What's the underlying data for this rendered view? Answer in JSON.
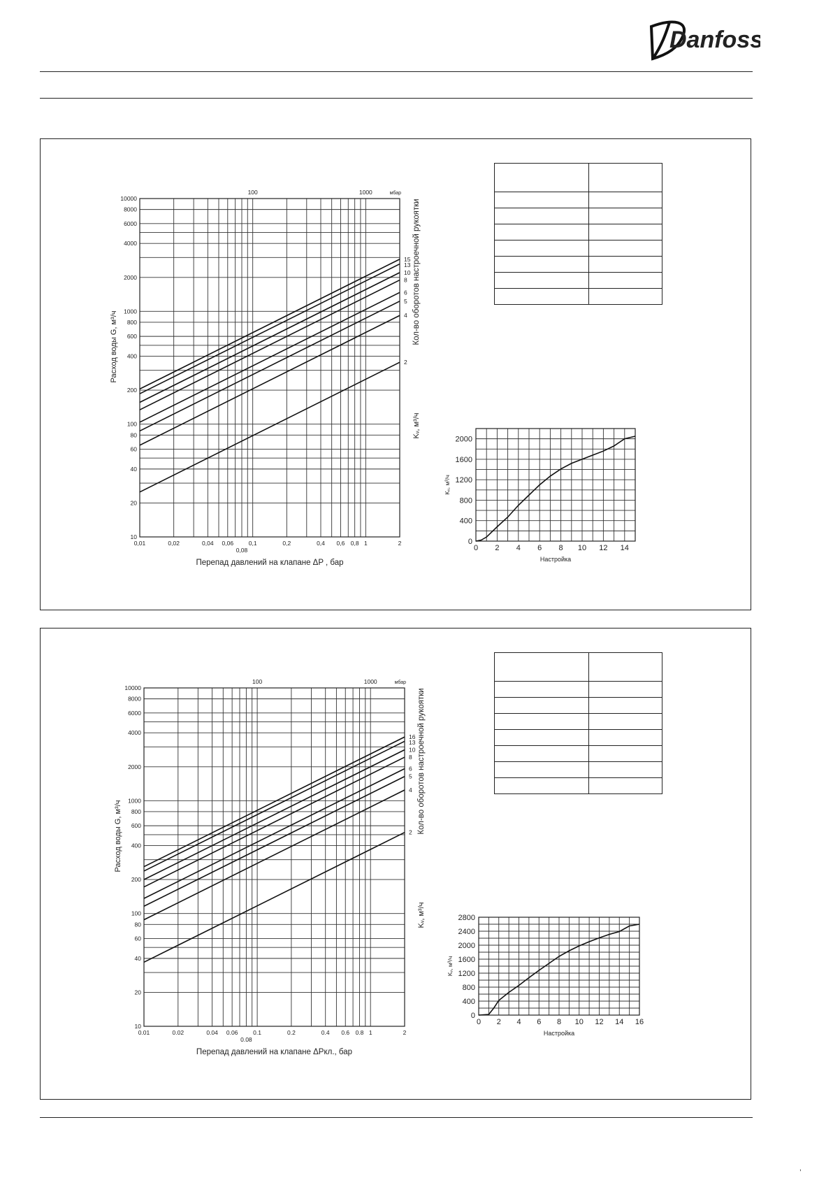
{
  "brand": {
    "logo_text": "Danfoss"
  },
  "page": {
    "page_mark": ","
  },
  "charts": [
    {
      "flow": {
        "type": "line",
        "title": "",
        "xlabel": "Перепад давлений на клапане  ΔP   , бар",
        "ylabel": "Расход воды G, м³/ч",
        "right_label": "Кол-во оборотов настроечной рукоятки",
        "kv_label": "Kᵥ, м³/ч",
        "top_unit": "мбар",
        "xscale": "log",
        "yscale": "log",
        "xlim": [
          0.01,
          2
        ],
        "ylim": [
          10,
          10000
        ],
        "x_ticks": [
          "0,01",
          "0,02",
          "0,04",
          "0,06",
          "0,08",
          "0,1",
          "0,2",
          "0,4",
          "0,6",
          "0,8",
          "1",
          "2"
        ],
        "y_ticks": [
          "10",
          "20",
          "40",
          "60",
          "80",
          "100",
          "200",
          "400",
          "600",
          "800",
          "1000",
          "2000",
          "4000",
          "6000",
          "8000",
          "10000"
        ],
        "top_ticks": [
          "100",
          "1000"
        ],
        "series": [
          {
            "name": "15",
            "kv": 2050
          },
          {
            "name": "13",
            "kv": 1860
          },
          {
            "name": "10",
            "kv": 1560
          },
          {
            "name": "8",
            "kv": 1340
          },
          {
            "name": "6",
            "kv": 1040
          },
          {
            "name": "5",
            "kv": 870
          },
          {
            "name": "4",
            "kv": 650
          },
          {
            "name": "2",
            "kv": 250
          }
        ]
      },
      "kv": {
        "type": "line",
        "xlabel": "Настройка",
        "ylabel": "Kᵥ, м³/ч",
        "xlim": [
          0,
          15
        ],
        "ylim": [
          0,
          2200
        ],
        "x_ticks": [
          0,
          2,
          4,
          6,
          8,
          10,
          12,
          14
        ],
        "y_ticks": [
          0,
          400,
          800,
          1200,
          1600,
          2000
        ],
        "x": [
          0,
          0.5,
          1,
          2,
          3,
          4,
          5,
          6,
          7,
          8,
          9,
          10,
          11,
          12,
          13,
          14,
          15
        ],
        "y": [
          0,
          20,
          80,
          280,
          470,
          700,
          900,
          1100,
          1270,
          1410,
          1520,
          1600,
          1680,
          1760,
          1860,
          2000,
          2050
        ]
      },
      "table_rows": 8
    },
    {
      "flow": {
        "type": "line",
        "title": "",
        "xlabel": "Перепад давлений на клапане  ΔPкл., бар",
        "ylabel": "Расход воды G, м³/ч",
        "right_label": "Кол-во оборотов настроечной рукоятки",
        "kv_label": "Kᵥ, м³/ч",
        "top_unit": "мбар",
        "xscale": "log",
        "yscale": "log",
        "xlim": [
          0.01,
          2
        ],
        "ylim": [
          10,
          10000
        ],
        "x_ticks": [
          "0.01",
          "0.02",
          "0.04",
          "0.06",
          "0.08",
          "0.1",
          "0.2",
          "0.4",
          "0.6",
          "0.8",
          "1",
          "2"
        ],
        "y_ticks": [
          "10",
          "20",
          "40",
          "60",
          "80",
          "100",
          "200",
          "400",
          "600",
          "800",
          "1000",
          "2000",
          "4000",
          "6000",
          "8000",
          "10000"
        ],
        "top_ticks": [
          "100",
          "1000"
        ],
        "series": [
          {
            "name": "16",
            "kv": 2600
          },
          {
            "name": "13",
            "kv": 2380
          },
          {
            "name": "10",
            "kv": 2000
          },
          {
            "name": "8",
            "kv": 1720
          },
          {
            "name": "6",
            "kv": 1360
          },
          {
            "name": "5",
            "kv": 1160
          },
          {
            "name": "4",
            "kv": 880
          },
          {
            "name": "2",
            "kv": 370
          }
        ]
      },
      "kv": {
        "type": "line",
        "xlabel": "Настройка",
        "ylabel": "Kᵥ, м³/ч",
        "xlim": [
          0,
          16
        ],
        "ylim": [
          0,
          2800
        ],
        "x_ticks": [
          0,
          2,
          4,
          6,
          8,
          10,
          12,
          14,
          16
        ],
        "y_ticks": [
          0,
          400,
          800,
          1200,
          1600,
          2000,
          2400,
          2800
        ],
        "x": [
          0,
          1,
          1.5,
          2,
          3,
          4,
          5,
          6,
          7,
          8,
          9,
          10,
          11,
          12,
          13,
          14,
          15,
          16
        ],
        "y": [
          0,
          20,
          200,
          420,
          650,
          850,
          1070,
          1280,
          1480,
          1680,
          1840,
          1980,
          2100,
          2210,
          2310,
          2390,
          2550,
          2600
        ]
      },
      "table_rows": 8
    }
  ],
  "chart_data": [
    {
      "type": "line",
      "title": "",
      "xlabel": "Перепад давлений на клапане  ΔP   , бар",
      "ylabel": "Расход воды G, м³/ч",
      "xscale": "log",
      "yscale": "log",
      "xlim": [
        0.01,
        2
      ],
      "ylim": [
        10,
        10000
      ],
      "x": [
        0.01,
        2
      ],
      "series": [
        {
          "name": "15",
          "values": [
            205,
            2900
          ]
        },
        {
          "name": "13",
          "values": [
            186,
            2630
          ]
        },
        {
          "name": "10",
          "values": [
            156,
            2210
          ]
        },
        {
          "name": "8",
          "values": [
            134,
            1900
          ]
        },
        {
          "name": "6",
          "values": [
            104,
            1470
          ]
        },
        {
          "name": "5",
          "values": [
            87,
            1230
          ]
        },
        {
          "name": "4",
          "values": [
            65,
            920
          ]
        },
        {
          "name": "2",
          "values": [
            25,
            354
          ]
        }
      ]
    },
    {
      "type": "line",
      "xlabel": "Настройка",
      "ylabel": "Kᵥ, м³/ч",
      "xlim": [
        0,
        15
      ],
      "ylim": [
        0,
        2200
      ],
      "x": [
        0,
        0.5,
        1,
        2,
        3,
        4,
        5,
        6,
        7,
        8,
        9,
        10,
        11,
        12,
        13,
        14,
        15
      ],
      "y": [
        0,
        20,
        80,
        280,
        470,
        700,
        900,
        1100,
        1270,
        1410,
        1520,
        1600,
        1680,
        1760,
        1860,
        2000,
        2050
      ]
    },
    {
      "type": "line",
      "title": "",
      "xlabel": "Перепад давлений на клапане  ΔPкл., бар",
      "ylabel": "Расход воды G, м³/ч",
      "xscale": "log",
      "yscale": "log",
      "xlim": [
        0.01,
        2
      ],
      "ylim": [
        10,
        10000
      ],
      "x": [
        0.01,
        2
      ],
      "series": [
        {
          "name": "16",
          "values": [
            260,
            3680
          ]
        },
        {
          "name": "13",
          "values": [
            238,
            3370
          ]
        },
        {
          "name": "10",
          "values": [
            200,
            2830
          ]
        },
        {
          "name": "8",
          "values": [
            172,
            2430
          ]
        },
        {
          "name": "6",
          "values": [
            136,
            1920
          ]
        },
        {
          "name": "5",
          "values": [
            116,
            1640
          ]
        },
        {
          "name": "4",
          "values": [
            88,
            1245
          ]
        },
        {
          "name": "2",
          "values": [
            37,
            523
          ]
        }
      ]
    },
    {
      "type": "line",
      "xlabel": "Настройка",
      "ylabel": "Kᵥ, м³/ч",
      "xlim": [
        0,
        16
      ],
      "ylim": [
        0,
        2800
      ],
      "x": [
        0,
        1,
        1.5,
        2,
        3,
        4,
        5,
        6,
        7,
        8,
        9,
        10,
        11,
        12,
        13,
        14,
        15,
        16
      ],
      "y": [
        0,
        20,
        200,
        420,
        650,
        850,
        1070,
        1280,
        1480,
        1680,
        1840,
        1980,
        2100,
        2210,
        2310,
        2390,
        2550,
        2600
      ]
    }
  ]
}
